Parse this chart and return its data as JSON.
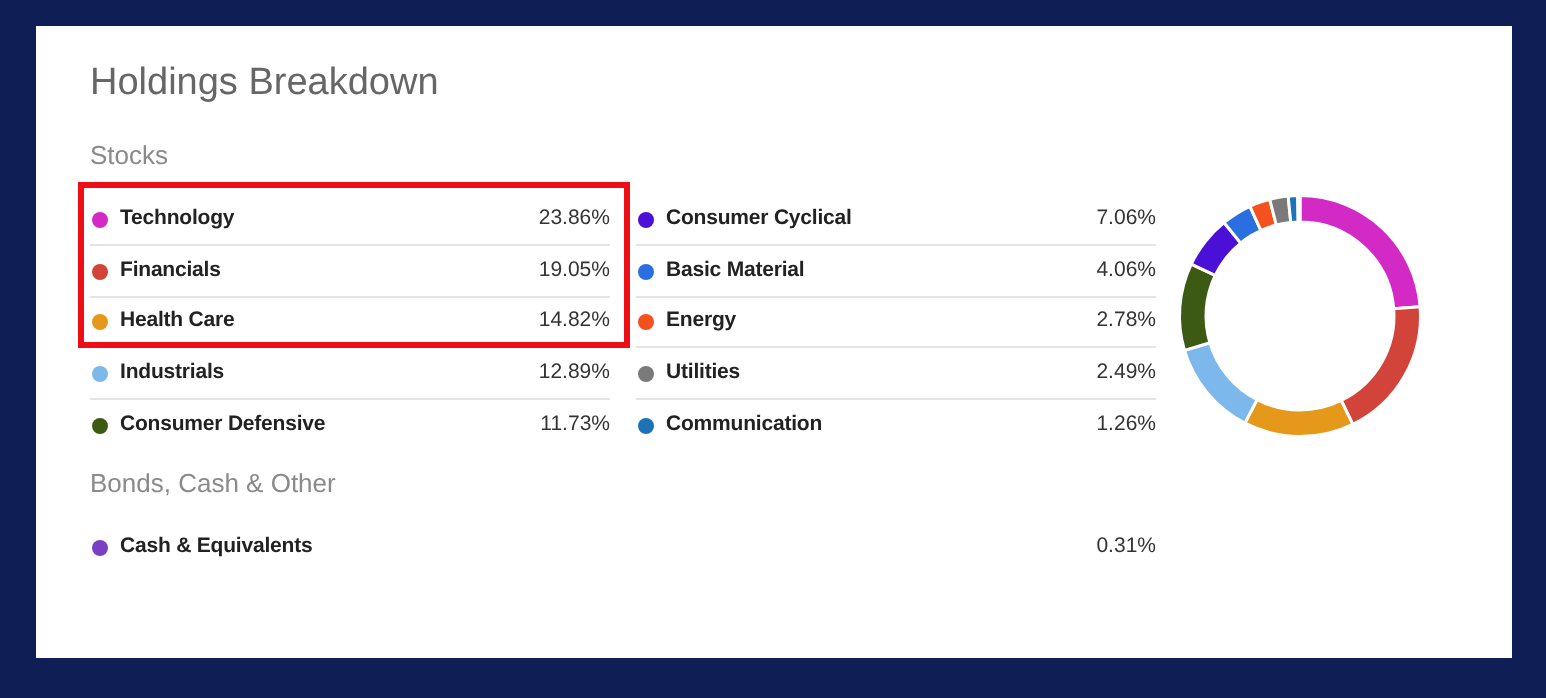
{
  "chart_data": {
    "type": "donut",
    "title": "Holdings Breakdown",
    "categories": [
      "Technology",
      "Financials",
      "Health Care",
      "Industrials",
      "Consumer Defensive",
      "Consumer Cyclical",
      "Basic Material",
      "Energy",
      "Utilities",
      "Communication",
      "Cash & Equivalents"
    ],
    "values": [
      23.86,
      19.05,
      14.82,
      12.89,
      11.73,
      7.06,
      4.06,
      2.78,
      2.49,
      1.26,
      0.31
    ],
    "value_labels": [
      "23.86%",
      "19.05%",
      "14.82%",
      "12.89%",
      "11.73%",
      "7.06%",
      "4.06%",
      "2.78%",
      "2.49%",
      "1.26%",
      "0.31%"
    ],
    "colors": [
      "#d42ac5",
      "#d2433a",
      "#e6981a",
      "#7db8ec",
      "#3c5a14",
      "#4a10d8",
      "#2a6fe0",
      "#f4511e",
      "#7a7a7a",
      "#1e72b8",
      "#7b3fc4"
    ],
    "annotations": [
      "Stocks",
      "Bonds, Cash & Other"
    ],
    "legend": "left"
  }
}
